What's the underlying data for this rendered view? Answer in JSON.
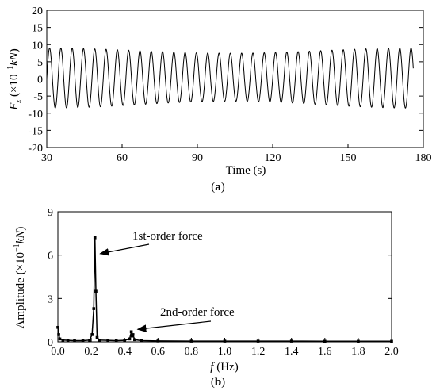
{
  "chart_data": [
    {
      "type": "line",
      "panel_label": "(a)",
      "xlabel": "Time (s)",
      "ylabel": "F_z (×10⁻¹kN)",
      "ylabel_parts": {
        "base": "F",
        "sub": "z",
        "pre": " (×10",
        "sup": "−1",
        "unit": "kN",
        "post": ")"
      },
      "xlim": [
        30,
        180
      ],
      "ylim": [
        -20,
        20
      ],
      "xticks": [
        30,
        60,
        90,
        120,
        150,
        180
      ],
      "yticks": [
        -20,
        -15,
        -10,
        -5,
        0,
        5,
        10,
        15,
        20
      ],
      "series": [
        {
          "t_start": 30,
          "t_end": 176,
          "period_s": 4.5,
          "amplitude_peak_max": 9,
          "amplitude_peak_min": 7.5,
          "amplitude_trough_min": -8.5,
          "amplitude_trough_max": -6.5
        }
      ]
    },
    {
      "type": "line",
      "panel_label": "(b)",
      "xlabel": "f (Hz)",
      "xlabel_parts": {
        "var": "f",
        "unit": " (Hz)"
      },
      "ylabel": "Amplitude (×10⁻¹kN)",
      "ylabel_parts": {
        "pre": "Amplitude (×10",
        "sup": "−1",
        "unit": "kN",
        "post": ")"
      },
      "xlim": [
        0,
        2.0
      ],
      "ylim": [
        0,
        9
      ],
      "xticks": [
        "0.0",
        "0.2",
        "0.4",
        "0.6",
        "0.8",
        "1.0",
        "1.2",
        "1.4",
        "1.6",
        "1.8",
        "2.0"
      ],
      "yticks": [
        0,
        3,
        6,
        9
      ],
      "series": [
        {
          "x": [
            0.0,
            0.005,
            0.012,
            0.03,
            0.06,
            0.1,
            0.15,
            0.19,
            0.205,
            0.215,
            0.222,
            0.228,
            0.235,
            0.25,
            0.3,
            0.35,
            0.4,
            0.43,
            0.44,
            0.445,
            0.45,
            0.46,
            0.5,
            0.6,
            0.8,
            1.0,
            1.2,
            1.4,
            1.6,
            1.8,
            2.0
          ],
          "y": [
            1.0,
            0.5,
            0.2,
            0.12,
            0.1,
            0.08,
            0.08,
            0.12,
            0.5,
            2.3,
            7.2,
            3.5,
            0.3,
            0.12,
            0.1,
            0.08,
            0.1,
            0.2,
            0.7,
            0.4,
            0.5,
            0.15,
            0.08,
            0.06,
            0.05,
            0.05,
            0.05,
            0.05,
            0.04,
            0.04,
            0.04
          ]
        }
      ],
      "annotations": [
        {
          "text": "1st-order force",
          "x": 0.225,
          "y": 7.2
        },
        {
          "text": "2nd-order force",
          "x": 0.45,
          "y": 0.7
        }
      ]
    }
  ]
}
